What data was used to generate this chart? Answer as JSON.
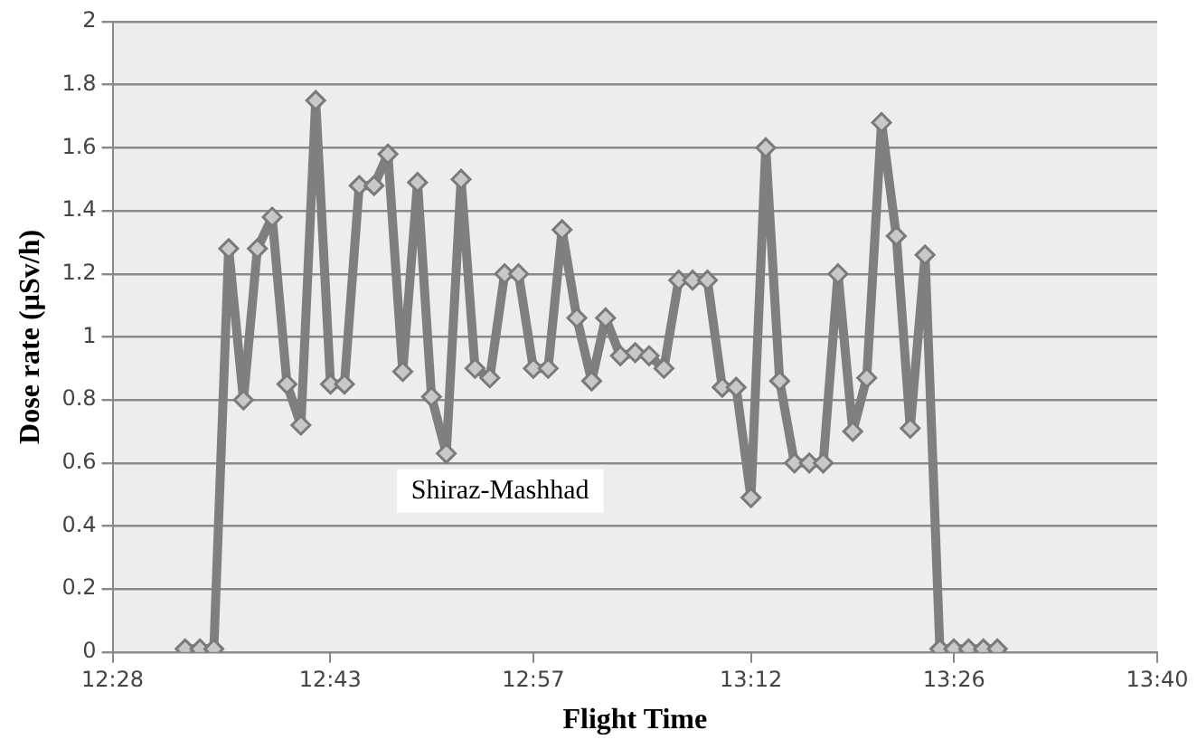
{
  "chart_data": {
    "type": "line",
    "xlabel": "Flight Time",
    "ylabel": "Dose rate (µSv/h)",
    "x": [
      12.55,
      12.567,
      12.583,
      12.6,
      12.617,
      12.633,
      12.65,
      12.667,
      12.683,
      12.7,
      12.717,
      12.733,
      12.75,
      12.767,
      12.783,
      12.8,
      12.817,
      12.833,
      12.85,
      12.867,
      12.883,
      12.9,
      12.917,
      12.933,
      12.95,
      12.967,
      12.983,
      13,
      13.017,
      13.033,
      13.05,
      13.067,
      13.083,
      13.1,
      13.117,
      13.133,
      13.15,
      13.167,
      13.183,
      13.2,
      13.217,
      13.233,
      13.25,
      13.267,
      13.283,
      13.3,
      13.317,
      13.333,
      13.35,
      13.367,
      13.383,
      13.4,
      13.417,
      13.433,
      13.45,
      13.467,
      13.483
    ],
    "series": [
      {
        "color": "#7f7f7f",
        "values": [
          0.01,
          0.01,
          0.01,
          1.28,
          0.8,
          1.28,
          1.38,
          0.85,
          0.72,
          1.75,
          0.85,
          0.85,
          1.48,
          1.48,
          1.58,
          0.89,
          1.49,
          0.81,
          0.63,
          1.5,
          0.9,
          0.87,
          1.2,
          1.2,
          0.9,
          0.9,
          1.34,
          1.06,
          0.86,
          1.06,
          0.94,
          0.95,
          0.94,
          0.9,
          1.18,
          1.18,
          1.18,
          0.84,
          0.84,
          0.49,
          1.6,
          0.86,
          0.6,
          0.6,
          0.6,
          1.2,
          0.7,
          0.87,
          1.68,
          1.32,
          0.71,
          1.26,
          0.01,
          0.01,
          0.01,
          0.01,
          0.01
        ]
      }
    ],
    "xlim": [
      12.4667,
      13.6667
    ],
    "xticks": [
      {
        "value": 12.4667,
        "label": "12:28"
      },
      {
        "value": 12.7167,
        "label": "12:43"
      },
      {
        "value": 12.95,
        "label": "12:57"
      },
      {
        "value": 13.2,
        "label": "13:12"
      },
      {
        "value": 13.4333,
        "label": "13:26"
      },
      {
        "value": 13.6667,
        "label": "13:40"
      }
    ],
    "ylim": [
      0,
      2
    ],
    "yticks": [
      0,
      0.2,
      0.4,
      0.6,
      0.8,
      1,
      1.2,
      1.4,
      1.6,
      1.8,
      2
    ],
    "annotations": [
      "Shiraz-Mashhad"
    ],
    "grid": "y",
    "legend": false,
    "marker": "diamond",
    "line_style": "solid"
  }
}
